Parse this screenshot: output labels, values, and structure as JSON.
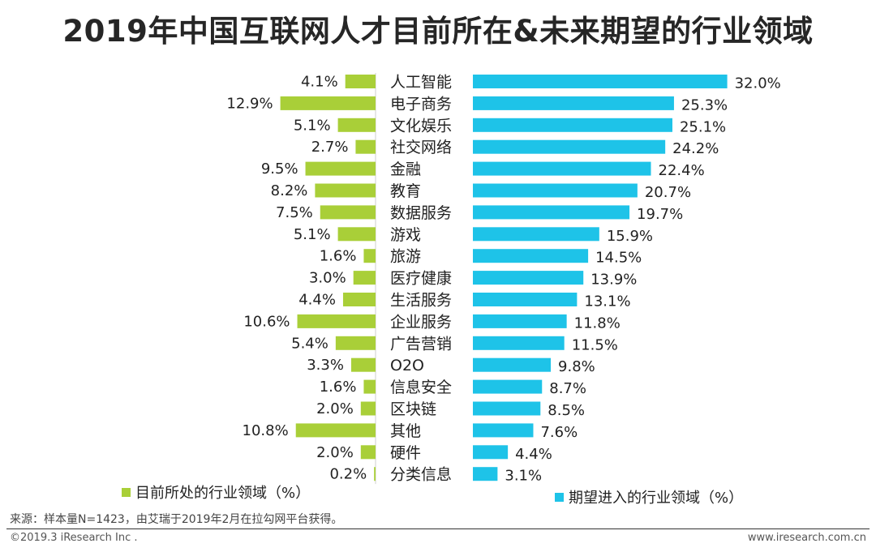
{
  "colors": {
    "current": "#a9cf38",
    "expected": "#1ec3e8",
    "text": "#222222"
  },
  "footer": {
    "source": "来源：样本量N=1423，由艾瑞于2019年2月在拉勾网平台获得。",
    "copyright": "©2019.3 iResearch Inc .",
    "url": "www.iresearch.com.cn"
  },
  "chart_data": {
    "type": "bar",
    "title": "2019年中国互联网人才目前所在&未来期望的行业领域",
    "categories": [
      "人工智能",
      "电子商务",
      "文化娱乐",
      "社交网络",
      "金融",
      "教育",
      "数据服务",
      "游戏",
      "旅游",
      "医疗健康",
      "生活服务",
      "企业服务",
      "广告营销",
      "O2O",
      "信息安全",
      "区块链",
      "其他",
      "硬件",
      "分类信息"
    ],
    "series": [
      {
        "name": "目前所处的行业领域（%）",
        "values": [
          4.1,
          12.9,
          5.1,
          2.7,
          9.5,
          8.2,
          7.5,
          5.1,
          1.6,
          3.0,
          4.4,
          10.6,
          5.4,
          3.3,
          1.6,
          2.0,
          10.8,
          2.0,
          0.2
        ]
      },
      {
        "name": "期望进入的行业领域（%）",
        "values": [
          32.0,
          25.3,
          25.1,
          24.2,
          22.4,
          20.7,
          19.7,
          15.9,
          14.5,
          13.9,
          13.1,
          11.8,
          11.5,
          9.8,
          8.7,
          8.5,
          7.6,
          4.4,
          3.1
        ]
      }
    ],
    "xlabel": "",
    "ylabel": "",
    "legend": [
      "bottom-left",
      "bottom-right"
    ]
  }
}
